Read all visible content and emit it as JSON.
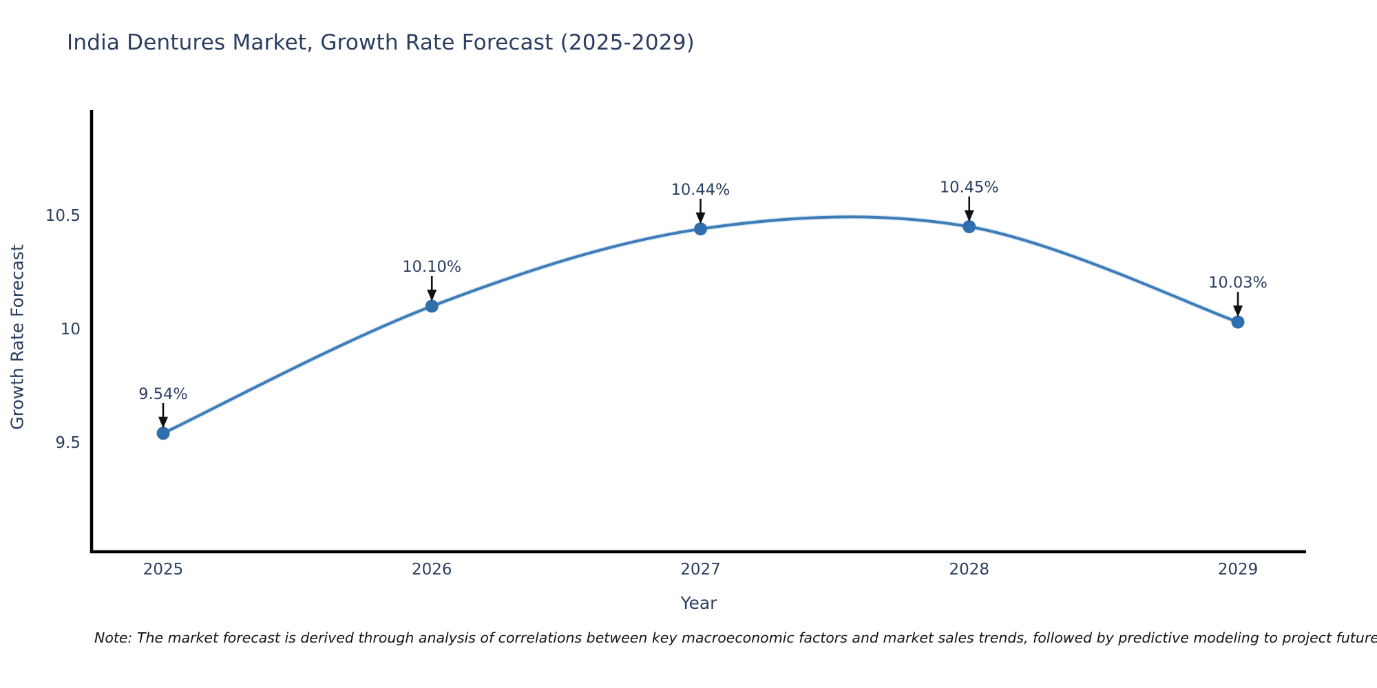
{
  "title": "India Dentures Market, Growth Rate Forecast (2025-2029)",
  "footnote": "Note: The market forecast is derived through analysis of correlations between key macroeconomic factors and market sales trends, followed by predictive modeling to project future sal",
  "chart_data": {
    "type": "line",
    "line_shape": "spline",
    "x": [
      "2025",
      "2026",
      "2027",
      "2028",
      "2029"
    ],
    "values": [
      9.54,
      10.1,
      10.44,
      10.45,
      10.03
    ],
    "point_labels": [
      "9.54%",
      "10.10%",
      "10.44%",
      "10.45%",
      "10.03%"
    ],
    "title": "India Dentures Market, Growth Rate Forecast (2025-2029)",
    "xlabel": "Year",
    "ylabel": "Growth Rate Forecast",
    "yticks": [
      "10.5",
      "10",
      "9.5"
    ],
    "ytick_values": [
      10.5,
      10.0,
      9.5
    ],
    "ylim": [
      9.02,
      10.97
    ],
    "grid": false,
    "legend_position": "none",
    "colors": {
      "line": "#3e7cb8",
      "line_halo": "#a9cbe6",
      "marker": "#2f6fad",
      "axis": "#000000",
      "text": "#2a3f5f",
      "annotation_arrow": "#111111",
      "title": "#2a3f5f"
    }
  }
}
